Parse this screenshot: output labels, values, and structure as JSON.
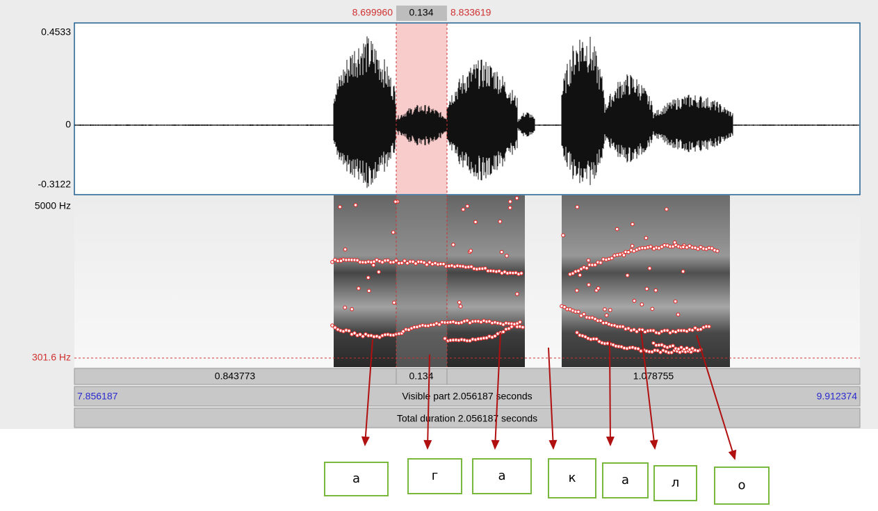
{
  "selection": {
    "start": "8.699960",
    "duration": "0.134",
    "end": "8.833619"
  },
  "waveform": {
    "max_label": "0.4533",
    "zero_label": "0",
    "min_label": "-0.3122"
  },
  "spectrogram": {
    "top_label": "5000 Hz",
    "cursor_label": "301.6 Hz"
  },
  "bottom_bar": {
    "left": "0.843773",
    "middle": "0.134",
    "right": "1.078755",
    "window_start": "7.856187",
    "visible": "Visible part 2.056187 seconds",
    "window_end": "9.912374",
    "total": "Total duration 2.056187 seconds"
  },
  "segments": [
    "а",
    "г",
    "а",
    "к",
    "а",
    "л",
    "о"
  ]
}
